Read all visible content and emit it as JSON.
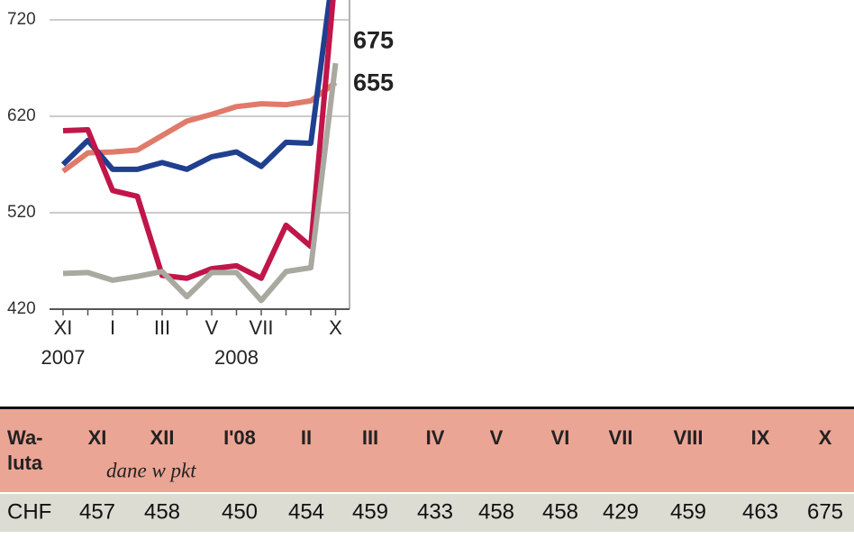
{
  "chart_data": {
    "type": "line",
    "categories": [
      "XI",
      null,
      "I",
      null,
      "III",
      null,
      "V",
      null,
      "VII",
      null,
      null,
      "X"
    ],
    "year_labels": [
      "2007",
      "2008"
    ],
    "ylim": [
      420,
      740
    ],
    "yticks": [
      420,
      520,
      620,
      720
    ],
    "grid": true,
    "series": [
      {
        "color": "#e07a6a",
        "values": [
          563,
          582,
          583,
          585,
          600,
          615,
          622,
          630,
          633,
          632,
          636,
          655
        ],
        "end_label": true
      },
      {
        "color": "#1f3f8f",
        "values": [
          570,
          595,
          565,
          565,
          572,
          565,
          578,
          583,
          568,
          593,
          592,
          790
        ],
        "end_label": false
      },
      {
        "color": "#c0164a",
        "values": [
          605,
          606,
          543,
          537,
          455,
          452,
          462,
          465,
          452,
          507,
          485,
          770
        ],
        "end_label": false
      },
      {
        "color": "#a9a9a0",
        "values": [
          457,
          458,
          450,
          454,
          459,
          433,
          458,
          458,
          429,
          459,
          463,
          675
        ],
        "end_label": true
      }
    ]
  },
  "table": {
    "header": [
      [
        "Wa-",
        "luta"
      ],
      "XI",
      "XII",
      "I'08",
      "II",
      "III",
      "IV",
      "V",
      "VI",
      "VII",
      "VIII",
      "IX",
      "X"
    ],
    "subtitle": "dane w pkt",
    "rows": [
      [
        "CHF",
        457,
        458,
        450,
        454,
        459,
        433,
        458,
        458,
        429,
        459,
        463,
        675
      ]
    ]
  }
}
